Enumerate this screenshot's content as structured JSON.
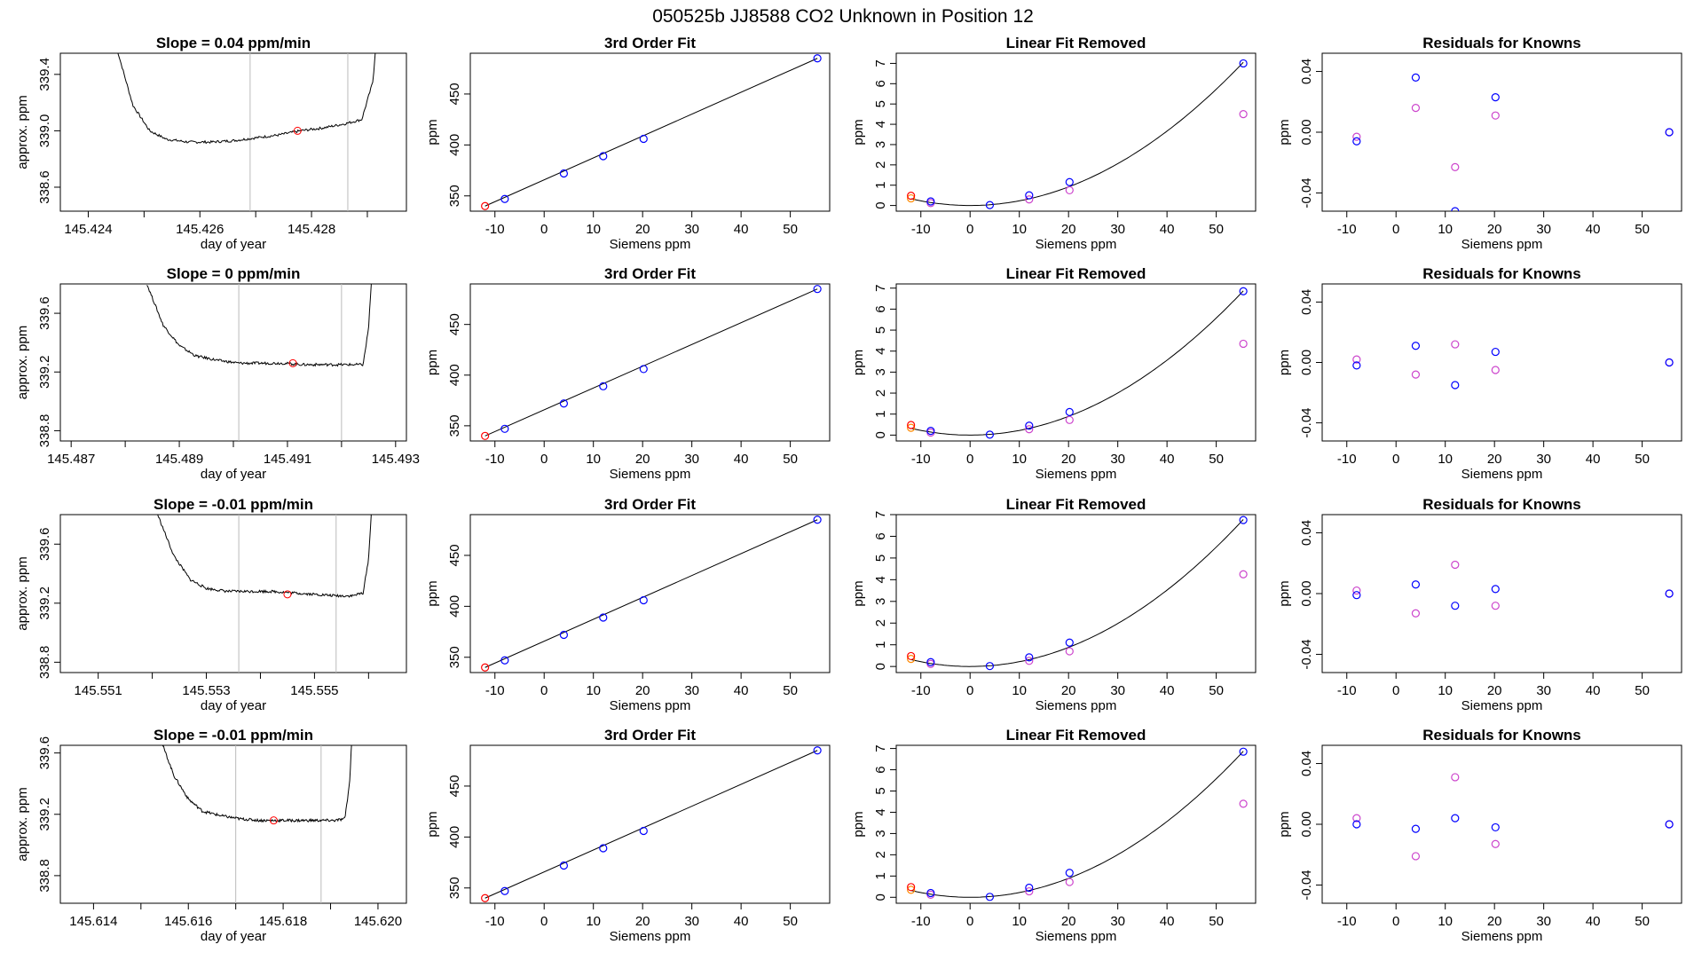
{
  "page_title": "050525b      JJ8588    CO2 Unknown in Position  12",
  "colors": {
    "blue": "#0000ff",
    "red": "#ff0000",
    "magenta": "#cc44cc",
    "orange": "#ff8800",
    "curve": "#000000",
    "vline": "#bbbbbb",
    "frame": "#000000"
  },
  "chart_data": [
    {
      "type": "line",
      "row": 0,
      "title": "Slope =  0.04  ppm/min",
      "xlabel": "day of year",
      "ylabel": "approx. ppm",
      "xlim": [
        145.4235,
        145.4297
      ],
      "ylim": [
        338.43,
        339.55
      ],
      "xticks": [
        145.424,
        145.425,
        145.426,
        145.427,
        145.428,
        145.429
      ],
      "xtick_labels": [
        "145.424",
        "",
        "145.426",
        "",
        "145.428",
        ""
      ],
      "yticks": [
        338.6,
        339.0,
        339.4
      ],
      "ytick_labels": [
        "338.6",
        "339.0",
        "339.4"
      ],
      "vlines": [
        145.4269,
        145.42865
      ],
      "marker": [
        145.42775,
        339.0
      ],
      "trace": {
        "x": [
          145.4245,
          145.4248,
          145.4251,
          145.4254,
          145.4258,
          145.4262,
          145.4266,
          145.427,
          145.4274,
          145.4278,
          145.4282,
          145.4286,
          145.4289,
          145.4291,
          145.42915
        ],
        "y": [
          339.6,
          339.18,
          339.0,
          338.94,
          338.92,
          338.92,
          338.93,
          338.95,
          338.97,
          339.0,
          339.02,
          339.05,
          339.08,
          339.35,
          339.6
        ]
      }
    },
    {
      "type": "line",
      "row": 1,
      "title": "Slope =  0  ppm/min",
      "xlabel": "day of year",
      "ylabel": "approx. ppm",
      "xlim": [
        145.4868,
        145.4932
      ],
      "ylim": [
        338.73,
        339.8
      ],
      "xticks": [
        145.487,
        145.488,
        145.489,
        145.49,
        145.491,
        145.492,
        145.493
      ],
      "xtick_labels": [
        "145.487",
        "",
        "145.489",
        "",
        "145.491",
        "",
        "145.493"
      ],
      "yticks": [
        338.8,
        339.2,
        339.6
      ],
      "ytick_labels": [
        "338.8",
        "339.2",
        "339.6"
      ],
      "vlines": [
        145.4901,
        145.492
      ],
      "marker": [
        145.4911,
        339.26
      ],
      "trace": {
        "x": [
          145.4884,
          145.4887,
          145.489,
          145.4893,
          145.4897,
          145.4901,
          145.4905,
          145.4909,
          145.4913,
          145.4917,
          145.4921,
          145.4924,
          145.4925,
          145.49255
        ],
        "y": [
          339.8,
          339.52,
          339.38,
          339.31,
          339.28,
          339.26,
          339.26,
          339.26,
          339.25,
          339.25,
          339.25,
          339.25,
          339.5,
          339.8
        ]
      }
    },
    {
      "type": "line",
      "row": 2,
      "title": "Slope =  -0.01  ppm/min",
      "xlabel": "day of year",
      "ylabel": "approx. ppm",
      "xlim": [
        145.5503,
        145.5567
      ],
      "ylim": [
        338.73,
        339.8
      ],
      "xticks": [
        145.551,
        145.552,
        145.553,
        145.554,
        145.555,
        145.556
      ],
      "xtick_labels": [
        "145.551",
        "",
        "145.553",
        "",
        "145.555",
        ""
      ],
      "yticks": [
        338.8,
        339.2,
        339.6
      ],
      "ytick_labels": [
        "338.8",
        "339.2",
        "339.6"
      ],
      "vlines": [
        145.5536,
        145.5554
      ],
      "marker": [
        145.5545,
        339.26
      ],
      "trace": {
        "x": [
          145.5521,
          145.5524,
          145.5527,
          145.553,
          145.5534,
          145.5538,
          145.5542,
          145.5546,
          145.555,
          145.5554,
          145.5557,
          145.5559,
          145.556,
          145.55605
        ],
        "y": [
          339.8,
          339.52,
          339.36,
          339.3,
          339.28,
          339.28,
          339.28,
          339.27,
          339.26,
          339.25,
          339.25,
          339.27,
          339.5,
          339.8
        ]
      }
    },
    {
      "type": "line",
      "row": 3,
      "title": "Slope =  -0.01  ppm/min",
      "xlabel": "day of year",
      "ylabel": "approx. ppm",
      "xlim": [
        145.6133,
        145.6206
      ],
      "ylim": [
        338.62,
        339.65
      ],
      "xticks": [
        145.614,
        145.615,
        145.616,
        145.617,
        145.618,
        145.619,
        145.62
      ],
      "xtick_labels": [
        "145.614",
        "",
        "145.616",
        "",
        "145.618",
        "",
        "145.620"
      ],
      "yticks": [
        338.8,
        339.2,
        339.6
      ],
      "ytick_labels": [
        "338.8",
        "339.2",
        "339.6"
      ],
      "vlines": [
        145.617,
        145.6188
      ],
      "marker": [
        145.6178,
        339.16
      ],
      "trace": {
        "x": [
          145.6154,
          145.6157,
          145.616,
          145.6163,
          145.6167,
          145.6171,
          145.6175,
          145.6179,
          145.6183,
          145.6187,
          145.6191,
          145.6193,
          145.6194,
          145.61945
        ],
        "y": [
          339.7,
          339.45,
          339.3,
          339.22,
          339.19,
          339.17,
          339.16,
          339.16,
          339.16,
          339.16,
          339.16,
          339.17,
          339.4,
          339.7
        ]
      }
    },
    {
      "type": "scatter",
      "row": 0,
      "title": "3rd Order Fit",
      "xlabel": "Siemens ppm",
      "ylabel": "ppm",
      "xlim": [
        -15,
        58
      ],
      "ylim": [
        335,
        490
      ],
      "xticks": [
        -10,
        0,
        10,
        20,
        30,
        40,
        50
      ],
      "yticks": [
        350,
        400,
        450
      ],
      "points_blue": [
        [
          -8,
          347
        ],
        [
          4,
          372
        ],
        [
          12,
          389
        ],
        [
          20.2,
          406
        ],
        [
          55.5,
          485
        ]
      ],
      "points_red": [
        [
          -12,
          340
        ]
      ],
      "curve": {
        "x": [
          -12,
          55.5
        ],
        "y": [
          340,
          485
        ]
      }
    },
    {
      "type": "scatter",
      "row": 1,
      "title": "3rd Order Fit",
      "xlabel": "Siemens ppm",
      "ylabel": "ppm",
      "xlim": [
        -15,
        58
      ],
      "ylim": [
        335,
        490
      ],
      "xticks": [
        -10,
        0,
        10,
        20,
        30,
        40,
        50
      ],
      "yticks": [
        350,
        400,
        450
      ],
      "points_blue": [
        [
          -8,
          347
        ],
        [
          4,
          372
        ],
        [
          12,
          389
        ],
        [
          20.2,
          406
        ],
        [
          55.5,
          485
        ]
      ],
      "points_red": [
        [
          -12,
          340
        ]
      ],
      "curve": {
        "x": [
          -12,
          55.5
        ],
        "y": [
          340,
          485
        ]
      }
    },
    {
      "type": "scatter",
      "row": 2,
      "title": "3rd Order Fit",
      "xlabel": "Siemens ppm",
      "ylabel": "ppm",
      "xlim": [
        -15,
        58
      ],
      "ylim": [
        335,
        490
      ],
      "xticks": [
        -10,
        0,
        10,
        20,
        30,
        40,
        50
      ],
      "yticks": [
        350,
        400,
        450
      ],
      "points_blue": [
        [
          -8,
          347
        ],
        [
          4,
          372
        ],
        [
          12,
          389
        ],
        [
          20.2,
          406
        ],
        [
          55.5,
          485
        ]
      ],
      "points_red": [
        [
          -12,
          340
        ]
      ],
      "curve": {
        "x": [
          -12,
          55.5
        ],
        "y": [
          340,
          485
        ]
      }
    },
    {
      "type": "scatter",
      "row": 3,
      "title": "3rd Order Fit",
      "xlabel": "Siemens ppm",
      "ylabel": "ppm",
      "xlim": [
        -15,
        58
      ],
      "ylim": [
        335,
        490
      ],
      "xticks": [
        -10,
        0,
        10,
        20,
        30,
        40,
        50
      ],
      "yticks": [
        350,
        400,
        450
      ],
      "points_blue": [
        [
          -8,
          347
        ],
        [
          4,
          372
        ],
        [
          12,
          389
        ],
        [
          20.2,
          406
        ],
        [
          55.5,
          485
        ]
      ],
      "points_red": [
        [
          -12,
          340
        ]
      ],
      "curve": {
        "x": [
          -12,
          55.5
        ],
        "y": [
          340,
          485
        ]
      }
    },
    {
      "type": "scatter",
      "row": 0,
      "title": "Linear Fit Removed",
      "xlabel": "Siemens ppm",
      "ylabel": "ppm",
      "xlim": [
        -15,
        58
      ],
      "ylim": [
        -0.28,
        7.5
      ],
      "xticks": [
        -10,
        0,
        10,
        20,
        30,
        40,
        50
      ],
      "yticks": [
        0,
        1,
        2,
        3,
        4,
        5,
        6,
        7
      ],
      "points_blue": [
        [
          -8,
          0.2
        ],
        [
          4,
          0.02
        ],
        [
          12,
          0.5
        ],
        [
          20.2,
          1.15
        ],
        [
          55.5,
          7.0
        ]
      ],
      "points_magenta": [
        [
          -8,
          0.12
        ],
        [
          12,
          0.3
        ],
        [
          20.2,
          0.75
        ],
        [
          55.5,
          4.5
        ]
      ],
      "points_red": [
        [
          -12,
          0.48
        ]
      ],
      "points_orange": [
        [
          -12,
          0.35
        ]
      ],
      "curve_coeffs": [
        0.0,
        0.0,
        0.00229
      ]
    },
    {
      "type": "scatter",
      "row": 1,
      "title": "Linear Fit Removed",
      "xlabel": "Siemens ppm",
      "ylabel": "ppm",
      "xlim": [
        -15,
        58
      ],
      "ylim": [
        -0.28,
        7.2
      ],
      "xticks": [
        -10,
        0,
        10,
        20,
        30,
        40,
        50
      ],
      "yticks": [
        0,
        1,
        2,
        3,
        4,
        5,
        6,
        7
      ],
      "points_blue": [
        [
          -8,
          0.2
        ],
        [
          4,
          0.02
        ],
        [
          12,
          0.45
        ],
        [
          20.2,
          1.1
        ],
        [
          55.5,
          6.85
        ]
      ],
      "points_magenta": [
        [
          -8,
          0.12
        ],
        [
          12,
          0.28
        ],
        [
          20.2,
          0.72
        ],
        [
          55.5,
          4.35
        ]
      ],
      "points_red": [
        [
          -12,
          0.48
        ]
      ],
      "points_orange": [
        [
          -12,
          0.35
        ]
      ],
      "curve_coeffs": [
        0.0,
        0.0,
        0.00223
      ]
    },
    {
      "type": "scatter",
      "row": 2,
      "title": "Linear Fit Removed",
      "xlabel": "Siemens ppm",
      "ylabel": "ppm",
      "xlim": [
        -15,
        58
      ],
      "ylim": [
        -0.28,
        7.0
      ],
      "xticks": [
        -10,
        0,
        10,
        20,
        30,
        40,
        50
      ],
      "yticks": [
        0,
        1,
        2,
        3,
        4,
        5,
        6,
        7
      ],
      "points_blue": [
        [
          -8,
          0.2
        ],
        [
          4,
          0.02
        ],
        [
          12,
          0.42
        ],
        [
          20.2,
          1.1
        ],
        [
          55.5,
          6.75
        ]
      ],
      "points_magenta": [
        [
          -8,
          0.12
        ],
        [
          12,
          0.26
        ],
        [
          20.2,
          0.7
        ],
        [
          55.5,
          4.25
        ]
      ],
      "points_red": [
        [
          -12,
          0.48
        ]
      ],
      "points_orange": [
        [
          -12,
          0.35
        ]
      ],
      "curve_coeffs": [
        0.0,
        0.0,
        0.0022
      ]
    },
    {
      "type": "scatter",
      "row": 3,
      "title": "Linear Fit Removed",
      "xlabel": "Siemens ppm",
      "ylabel": "ppm",
      "xlim": [
        -15,
        58
      ],
      "ylim": [
        -0.28,
        7.15
      ],
      "xticks": [
        -10,
        0,
        10,
        20,
        30,
        40,
        50
      ],
      "yticks": [
        0,
        1,
        2,
        3,
        4,
        5,
        6,
        7
      ],
      "points_blue": [
        [
          -8,
          0.2
        ],
        [
          4,
          0.02
        ],
        [
          12,
          0.45
        ],
        [
          20.2,
          1.15
        ],
        [
          55.5,
          6.85
        ]
      ],
      "points_magenta": [
        [
          -8,
          0.12
        ],
        [
          12,
          0.28
        ],
        [
          20.2,
          0.72
        ],
        [
          55.5,
          4.4
        ]
      ],
      "points_red": [
        [
          -12,
          0.48
        ]
      ],
      "points_orange": [
        [
          -12,
          0.35
        ]
      ],
      "curve_coeffs": [
        0.0,
        0.0,
        0.00223
      ]
    },
    {
      "type": "scatter",
      "row": 0,
      "title": "Residuals for Knowns",
      "xlabel": "Siemens ppm",
      "ylabel": "ppm",
      "xlim": [
        -15,
        58
      ],
      "ylim": [
        -0.052,
        0.052
      ],
      "xticks": [
        -10,
        0,
        10,
        20,
        30,
        40,
        50
      ],
      "yticks": [
        -0.04,
        0.0,
        0.04
      ],
      "ytick_labels": [
        "-0.04",
        "0.00",
        "0.04"
      ],
      "points_blue": [
        [
          -8,
          -0.006
        ],
        [
          4,
          0.036
        ],
        [
          12,
          -0.052
        ],
        [
          20.2,
          0.023
        ],
        [
          55.5,
          0.0
        ]
      ],
      "points_magenta": [
        [
          -8,
          -0.003
        ],
        [
          4,
          0.016
        ],
        [
          12,
          -0.023
        ],
        [
          20.2,
          0.011
        ],
        [
          55.5,
          0.0
        ]
      ]
    },
    {
      "type": "scatter",
      "row": 1,
      "title": "Residuals for Knowns",
      "xlabel": "Siemens ppm",
      "ylabel": "ppm",
      "xlim": [
        -15,
        58
      ],
      "ylim": [
        -0.052,
        0.052
      ],
      "xticks": [
        -10,
        0,
        10,
        20,
        30,
        40,
        50
      ],
      "yticks": [
        -0.04,
        0.0,
        0.04
      ],
      "ytick_labels": [
        "-0.04",
        "0.00",
        "0.04"
      ],
      "points_blue": [
        [
          -8,
          -0.002
        ],
        [
          4,
          0.011
        ],
        [
          12,
          -0.015
        ],
        [
          20.2,
          0.007
        ],
        [
          55.5,
          0.0
        ]
      ],
      "points_magenta": [
        [
          -8,
          0.002
        ],
        [
          4,
          -0.008
        ],
        [
          12,
          0.012
        ],
        [
          20.2,
          -0.005
        ],
        [
          55.5,
          0.0
        ]
      ]
    },
    {
      "type": "scatter",
      "row": 2,
      "title": "Residuals for Knowns",
      "xlabel": "Siemens ppm",
      "ylabel": "ppm",
      "xlim": [
        -15,
        58
      ],
      "ylim": [
        -0.052,
        0.052
      ],
      "xticks": [
        -10,
        0,
        10,
        20,
        30,
        40,
        50
      ],
      "yticks": [
        -0.04,
        0.0,
        0.04
      ],
      "ytick_labels": [
        "-0.04",
        "0.00",
        "0.04"
      ],
      "points_blue": [
        [
          -8,
          -0.001
        ],
        [
          4,
          0.006
        ],
        [
          12,
          -0.008
        ],
        [
          20.2,
          0.003
        ],
        [
          55.5,
          0.0
        ]
      ],
      "points_magenta": [
        [
          -8,
          0.002
        ],
        [
          4,
          -0.013
        ],
        [
          12,
          0.019
        ],
        [
          20.2,
          -0.008
        ],
        [
          55.5,
          0.0
        ]
      ]
    },
    {
      "type": "scatter",
      "row": 3,
      "title": "Residuals for Knowns",
      "xlabel": "Siemens ppm",
      "ylabel": "ppm",
      "xlim": [
        -15,
        58
      ],
      "ylim": [
        -0.052,
        0.052
      ],
      "xticks": [
        -10,
        0,
        10,
        20,
        30,
        40,
        50
      ],
      "yticks": [
        -0.04,
        0.0,
        0.04
      ],
      "ytick_labels": [
        "-0.04",
        "0.00",
        "0.04"
      ],
      "points_blue": [
        [
          -8,
          0.0
        ],
        [
          4,
          -0.003
        ],
        [
          12,
          0.004
        ],
        [
          20.2,
          -0.002
        ],
        [
          55.5,
          0.0
        ]
      ],
      "points_magenta": [
        [
          -8,
          0.004
        ],
        [
          4,
          -0.021
        ],
        [
          12,
          0.031
        ],
        [
          20.2,
          -0.013
        ],
        [
          55.5,
          0.0
        ]
      ]
    }
  ]
}
